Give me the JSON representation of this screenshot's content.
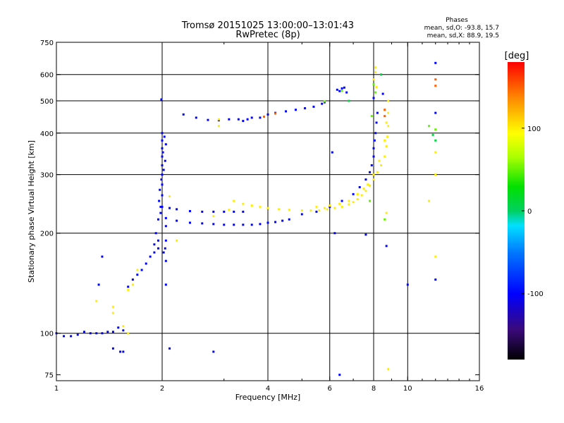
{
  "header": {
    "title": "Tromsø 20151025 13:00:00–13:01:43",
    "subtitle": "RwPretec (8p)",
    "phase_heading": "Phases",
    "phase_o": "mean, sd,O: -93.8, 15.7",
    "phase_x": "mean, sd,X:  88.9, 19.5"
  },
  "chart_data": {
    "type": "scatter",
    "xlabel": "Frequency [MHz]",
    "ylabel": "Stationary phase Virtual Height [km]",
    "x_scale": "log",
    "y_scale": "log",
    "xlim": [
      1,
      16
    ],
    "ylim": [
      72,
      750
    ],
    "x_ticks": [
      1,
      2,
      4,
      6,
      8,
      10,
      16
    ],
    "y_ticks": [
      75,
      100,
      200,
      300,
      400,
      500,
      600,
      750
    ],
    "x_gridlines": [
      2,
      4,
      6,
      8,
      10
    ],
    "y_gridlines": [
      100,
      200,
      300,
      400,
      500,
      600
    ],
    "colorbar": {
      "label": "[deg]",
      "ticks": [
        100,
        0,
        -100
      ],
      "range": [
        -180,
        180
      ]
    },
    "series": [
      {
        "phase": -100,
        "points": [
          [
            1.0,
            100
          ],
          [
            1.05,
            98
          ],
          [
            1.1,
            98
          ],
          [
            1.15,
            99
          ],
          [
            1.2,
            101
          ],
          [
            1.25,
            100
          ],
          [
            1.3,
            100
          ],
          [
            1.35,
            100
          ],
          [
            1.4,
            101
          ],
          [
            1.45,
            101
          ],
          [
            1.5,
            104
          ],
          [
            1.55,
            102
          ],
          [
            1.35,
            170
          ],
          [
            1.32,
            140
          ],
          [
            1.45,
            90
          ],
          [
            1.55,
            88
          ],
          [
            1.52,
            88
          ],
          [
            1.6,
            138
          ],
          [
            1.65,
            145
          ],
          [
            1.7,
            150
          ],
          [
            1.75,
            155
          ],
          [
            1.8,
            162
          ],
          [
            1.85,
            170
          ],
          [
            1.9,
            175
          ],
          [
            1.95,
            180
          ],
          [
            1.9,
            185
          ],
          [
            1.95,
            190
          ],
          [
            1.92,
            200
          ],
          [
            1.95,
            220
          ],
          [
            1.98,
            240
          ],
          [
            2.0,
            260
          ],
          [
            2.0,
            280
          ],
          [
            2.0,
            300
          ],
          [
            2.0,
            320
          ],
          [
            2.0,
            340
          ],
          [
            2.0,
            360
          ],
          [
            2.0,
            380
          ],
          [
            2.0,
            400
          ],
          [
            1.98,
            230
          ],
          [
            1.96,
            250
          ],
          [
            1.97,
            270
          ],
          [
            1.99,
            290
          ],
          [
            2.02,
            310
          ],
          [
            2.04,
            330
          ],
          [
            2.01,
            350
          ],
          [
            2.05,
            370
          ],
          [
            2.03,
            390
          ],
          [
            2.02,
            175
          ],
          [
            2.05,
            165
          ],
          [
            2.05,
            190
          ],
          [
            2.05,
            210
          ],
          [
            2.04,
            180
          ],
          [
            1.99,
            505
          ],
          [
            2.05,
            140
          ],
          [
            2.1,
            90
          ],
          [
            2.8,
            88
          ],
          [
            2.0,
            240
          ],
          [
            2.1,
            238
          ],
          [
            2.2,
            236
          ],
          [
            2.4,
            233
          ],
          [
            2.6,
            232
          ],
          [
            2.8,
            232
          ],
          [
            3.0,
            232
          ],
          [
            3.2,
            232
          ],
          [
            3.4,
            232
          ],
          [
            2.05,
            222
          ],
          [
            2.2,
            218
          ],
          [
            2.4,
            215
          ],
          [
            2.6,
            214
          ],
          [
            2.8,
            213
          ],
          [
            3.0,
            212
          ],
          [
            3.2,
            212
          ],
          [
            3.4,
            212
          ],
          [
            3.6,
            212
          ],
          [
            3.8,
            213
          ],
          [
            4.0,
            215
          ],
          [
            4.2,
            216
          ],
          [
            4.4,
            218
          ],
          [
            4.6,
            220
          ],
          [
            2.3,
            455
          ],
          [
            2.5,
            445
          ],
          [
            2.7,
            438
          ],
          [
            2.9,
            437
          ],
          [
            3.1,
            440
          ],
          [
            3.3,
            440
          ],
          [
            3.4,
            435
          ],
          [
            3.5,
            440
          ],
          [
            3.6,
            445
          ],
          [
            3.8,
            445
          ],
          [
            4.0,
            455
          ],
          [
            4.2,
            460
          ],
          [
            4.5,
            465
          ],
          [
            4.8,
            470
          ],
          [
            5.1,
            475
          ],
          [
            5.4,
            480
          ],
          [
            5.7,
            490
          ],
          [
            5.8,
            495
          ],
          [
            6.1,
            350
          ],
          [
            6.3,
            540
          ],
          [
            6.4,
            535
          ],
          [
            6.5,
            545
          ],
          [
            6.6,
            548
          ],
          [
            6.7,
            530
          ],
          [
            5.0,
            228
          ],
          [
            5.5,
            232
          ],
          [
            6.0,
            240
          ],
          [
            6.5,
            250
          ],
          [
            7.0,
            262
          ],
          [
            7.3,
            275
          ],
          [
            7.6,
            290
          ],
          [
            7.8,
            305
          ],
          [
            7.9,
            320
          ],
          [
            8.0,
            340
          ],
          [
            8.0,
            360
          ],
          [
            8.05,
            380
          ],
          [
            8.1,
            400
          ],
          [
            8.15,
            430
          ],
          [
            8.2,
            460
          ],
          [
            8.0,
            510
          ],
          [
            6.2,
            200
          ],
          [
            7.6,
            198
          ],
          [
            8.7,
            183
          ],
          [
            6.4,
            75
          ],
          [
            8.5,
            525
          ],
          [
            10.0,
            140
          ],
          [
            12.0,
            145
          ],
          [
            12.0,
            460
          ],
          [
            12.0,
            650
          ]
        ]
      },
      {
        "phase": 100,
        "points": [
          [
            3.2,
            250
          ],
          [
            3.4,
            245
          ],
          [
            3.6,
            242
          ],
          [
            3.8,
            240
          ],
          [
            4.0,
            238
          ],
          [
            4.3,
            236
          ],
          [
            4.6,
            235
          ],
          [
            5.0,
            234
          ],
          [
            5.3,
            234
          ],
          [
            5.6,
            234
          ],
          [
            5.9,
            236
          ],
          [
            6.2,
            238
          ],
          [
            6.5,
            240
          ],
          [
            6.8,
            244
          ],
          [
            7.0,
            248
          ],
          [
            7.2,
            253
          ],
          [
            7.4,
            260
          ],
          [
            7.6,
            268
          ],
          [
            7.8,
            278
          ],
          [
            8.0,
            290
          ],
          [
            8.2,
            305
          ],
          [
            8.4,
            320
          ],
          [
            8.6,
            340
          ],
          [
            8.7,
            365
          ],
          [
            8.75,
            390
          ],
          [
            8.8,
            420
          ],
          [
            8.8,
            460
          ],
          [
            8.8,
            500
          ],
          [
            5.5,
            240
          ],
          [
            5.8,
            238
          ],
          [
            6.0,
            242
          ],
          [
            6.4,
            245
          ],
          [
            6.8,
            250
          ],
          [
            7.2,
            262
          ],
          [
            7.5,
            272
          ],
          [
            7.7,
            280
          ],
          [
            8.0,
            300
          ],
          [
            8.3,
            330
          ],
          [
            8.6,
            380
          ],
          [
            8.7,
            430
          ],
          [
            8.0,
            580
          ],
          [
            8.1,
            610
          ],
          [
            8.1,
            630
          ],
          [
            8.15,
            550
          ],
          [
            8.7,
            230
          ],
          [
            8.8,
            78
          ],
          [
            12.0,
            350
          ],
          [
            12.0,
            300
          ],
          [
            12.0,
            170
          ],
          [
            11.5,
            250
          ],
          [
            2.9,
            440
          ],
          [
            2.9,
            420
          ],
          [
            1.7,
            155
          ],
          [
            1.65,
            140
          ],
          [
            1.6,
            135
          ],
          [
            1.45,
            120
          ],
          [
            1.45,
            115
          ],
          [
            1.55,
            105
          ],
          [
            1.6,
            100
          ],
          [
            1.3,
            125
          ],
          [
            2.1,
            258
          ],
          [
            2.2,
            190
          ],
          [
            2.8,
            225
          ],
          [
            3.1,
            235
          ]
        ]
      },
      {
        "phase": 50,
        "points": [
          [
            7.9,
            450
          ],
          [
            8.0,
            560
          ],
          [
            8.1,
            530
          ],
          [
            8.6,
            220
          ],
          [
            11.5,
            420
          ],
          [
            12.0,
            410
          ],
          [
            7.8,
            250
          ],
          [
            5.8,
            498
          ],
          [
            6.5,
            536
          ]
        ]
      },
      {
        "phase": 150,
        "points": [
          [
            12.0,
            580
          ],
          [
            12.0,
            555
          ],
          [
            8.6,
            470
          ],
          [
            8.6,
            450
          ],
          [
            4.2,
            458
          ],
          [
            3.9,
            448
          ]
        ]
      },
      {
        "phase": 10,
        "points": [
          [
            12.0,
            380
          ],
          [
            11.8,
            395
          ],
          [
            6.8,
            500
          ],
          [
            8.4,
            600
          ]
        ]
      }
    ]
  }
}
